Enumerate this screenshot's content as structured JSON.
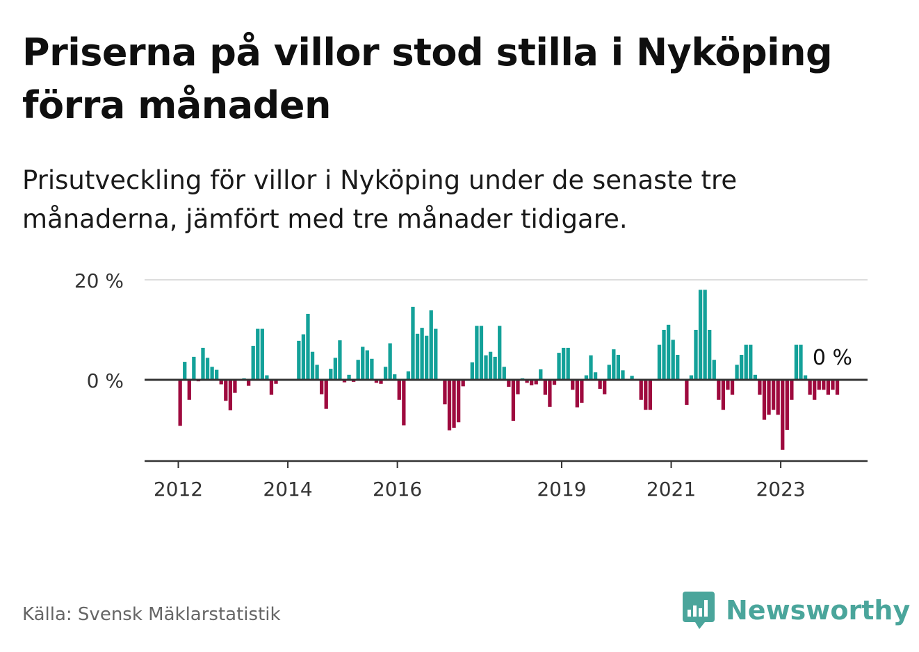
{
  "title": "Priserna på villor stod stilla i Nyköping förra månaden",
  "subtitle": "Prisutveckling för villor i Nyköping under de senaste tre månaderna, jämfört med tre månader tidigare.",
  "source": "Källa: Svensk Mäklarstatistik",
  "brand": {
    "name": "Newsworthy",
    "icon": "newsworthy-logo-icon"
  },
  "colors": {
    "positive": "#13a199",
    "negative": "#9e0a3e",
    "axis": "#333333",
    "grid": "#dddddd",
    "brand": "#4aa59b"
  },
  "chart_data": {
    "type": "bar",
    "title": "Priserna på villor stod stilla i Nyköping förra månaden",
    "xlabel": "",
    "ylabel": "",
    "start": "2012-01",
    "x_ticks": [
      "2012",
      "2014",
      "2016",
      "2019",
      "2021",
      "2023"
    ],
    "y_ticks": [
      {
        "value": 0,
        "label": "0 %"
      },
      {
        "value": 20,
        "label": "20 %"
      }
    ],
    "ylim": [
      -16,
      20
    ],
    "grid": true,
    "last_label": "0 %",
    "values": [
      -9.2,
      3.6,
      -4.0,
      4.6,
      -0.3,
      6.4,
      4.4,
      2.6,
      2.0,
      -0.9,
      -4.2,
      -6.1,
      -2.6,
      0,
      0.3,
      -1.2,
      6.8,
      10.2,
      10.2,
      0.9,
      -3.0,
      -0.8,
      0,
      0,
      0,
      0,
      7.8,
      9.1,
      13.2,
      5.6,
      3.0,
      -2.9,
      -5.8,
      2.2,
      4.4,
      7.9,
      -0.5,
      1.0,
      -0.4,
      4.0,
      6.6,
      5.9,
      4.2,
      -0.6,
      -0.8,
      2.6,
      7.3,
      1.1,
      -4.0,
      -9.1,
      1.7,
      14.6,
      9.2,
      10.4,
      8.8,
      13.9,
      10.2,
      0,
      -4.9,
      -10.1,
      -9.6,
      -8.5,
      -1.3,
      0,
      3.5,
      10.8,
      10.8,
      4.9,
      5.6,
      4.6,
      10.8,
      2.6,
      -1.4,
      -8.2,
      -2.9,
      0.3,
      -0.6,
      -1.1,
      -0.9,
      2.1,
      -3.0,
      -5.4,
      -1.0,
      5.4,
      6.4,
      6.4,
      -2.0,
      -5.5,
      -4.6,
      0.9,
      4.9,
      1.5,
      -1.8,
      -2.9,
      3.0,
      6.1,
      5.0,
      1.9,
      0,
      0.8,
      0,
      -4.0,
      -6.0,
      -6.0,
      0,
      7.0,
      10.0,
      11.0,
      8.0,
      5.0,
      0,
      -5.0,
      0.9,
      10.0,
      18.0,
      18.0,
      10.0,
      4.0,
      -4.0,
      -6.0,
      -2.0,
      -3.0,
      3.0,
      5.0,
      7.0,
      7.0,
      1.0,
      -3.0,
      -8.0,
      -7.0,
      -6.0,
      -7.0,
      -14.0,
      -10.0,
      -4.0,
      7.0,
      7.0,
      0.9,
      -3.0,
      -4.0,
      -2.0,
      -2.0,
      -3.0,
      -2.0,
      -3.0,
      0
    ]
  }
}
